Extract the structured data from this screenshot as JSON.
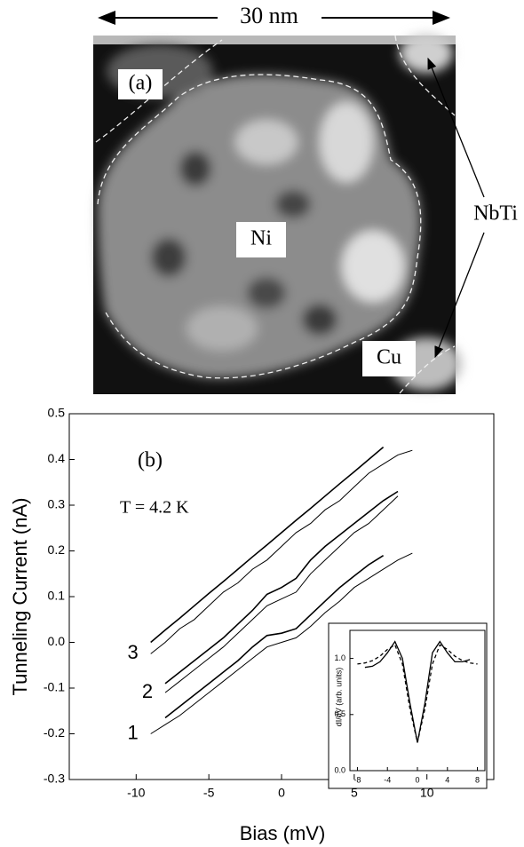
{
  "panel_a": {
    "scale": "30 nm",
    "label": "(a)",
    "regions": [
      "Ni",
      "Cu",
      "NbTi"
    ]
  },
  "chart_data": [
    {
      "type": "line",
      "label": "(b)",
      "annotation": "T = 4.2 K",
      "xlabel": "Bias (mV)",
      "ylabel": "Tunneling Current (nA)",
      "xlim": [
        -14.6,
        14.6
      ],
      "xticks": [
        -10,
        -5,
        0,
        5,
        10
      ],
      "ylim": [
        -0.3,
        0.5
      ],
      "yticks": [
        0.5,
        0.4,
        0.3,
        0.2,
        0.1,
        {
          "value": 0,
          "label": "0.0"
        },
        -0.1,
        -0.2,
        -0.3
      ],
      "curve_labels": [
        "3",
        "2",
        "1"
      ],
      "x": [
        -9,
        -8,
        -7,
        -6,
        -5,
        -4,
        -3,
        -2,
        -1,
        0,
        1,
        2,
        3,
        4,
        5,
        6,
        7,
        8,
        9
      ],
      "series": [
        {
          "color": "#000000",
          "values": [
            0.0,
            0.027,
            0.053,
            0.08,
            0.107,
            0.133,
            0.16,
            0.187,
            0.213,
            0.24,
            0.267,
            0.293,
            0.32,
            0.347,
            0.373,
            0.4,
            0.427,
            null,
            null
          ]
        },
        {
          "color": "#000000",
          "values": [
            -0.025,
            0.0,
            0.03,
            0.05,
            0.08,
            0.11,
            0.13,
            0.16,
            0.18,
            0.21,
            0.24,
            0.26,
            0.29,
            0.31,
            0.34,
            0.37,
            0.39,
            0.41,
            0.42
          ]
        },
        {
          "color": "#000000",
          "values": [
            null,
            -0.09,
            -0.065,
            -0.04,
            -0.015,
            0.01,
            0.04,
            0.07,
            0.105,
            0.12,
            0.14,
            0.18,
            0.21,
            0.235,
            0.26,
            0.285,
            0.31,
            0.33,
            null
          ]
        },
        {
          "color": "#000000",
          "values": [
            null,
            -0.11,
            -0.085,
            -0.06,
            -0.035,
            -0.01,
            0.02,
            0.05,
            0.08,
            0.095,
            0.11,
            0.15,
            0.18,
            0.21,
            0.24,
            0.26,
            0.29,
            0.32,
            null
          ]
        },
        {
          "color": "#000000",
          "values": [
            null,
            -0.165,
            -0.14,
            -0.115,
            -0.09,
            -0.065,
            -0.04,
            -0.01,
            0.015,
            0.02,
            0.03,
            0.06,
            0.09,
            0.12,
            0.145,
            0.17,
            0.19,
            null,
            null
          ]
        },
        {
          "color": "#000000",
          "values": [
            -0.2,
            -0.18,
            -0.16,
            -0.135,
            -0.11,
            -0.085,
            -0.06,
            -0.035,
            -0.01,
            0.0,
            0.01,
            0.035,
            0.065,
            0.09,
            0.12,
            0.14,
            0.16,
            0.18,
            0.195
          ]
        }
      ]
    },
    {
      "type": "line",
      "ylabel": "dI/dV (arb. units)",
      "xlim": [
        -9,
        9
      ],
      "xticks": [
        -8,
        -4,
        0,
        4,
        8
      ],
      "ylim": [
        0,
        1.25
      ],
      "yticks": [
        {
          "value": 0,
          "label": "0.0"
        },
        0.5,
        {
          "value": 1,
          "label": "1.0"
        }
      ],
      "x": [
        -8,
        -7,
        -6,
        -5,
        -4,
        -3,
        -2,
        -1,
        0,
        1,
        2,
        3,
        4,
        5,
        6,
        7,
        8
      ],
      "series": [
        {
          "color": "#000000",
          "style": "solid",
          "values": [
            null,
            0.92,
            0.93,
            0.97,
            1.05,
            1.15,
            1.0,
            0.6,
            0.25,
            0.6,
            1.05,
            1.15,
            1.05,
            0.97,
            0.97,
            0.99,
            null
          ]
        },
        {
          "color": "#000000",
          "style": "dashed",
          "values": [
            0.95,
            0.96,
            0.98,
            1.02,
            1.08,
            1.12,
            0.95,
            0.55,
            0.25,
            0.55,
            0.95,
            1.12,
            1.08,
            1.02,
            0.98,
            0.96,
            0.95
          ]
        }
      ]
    }
  ]
}
